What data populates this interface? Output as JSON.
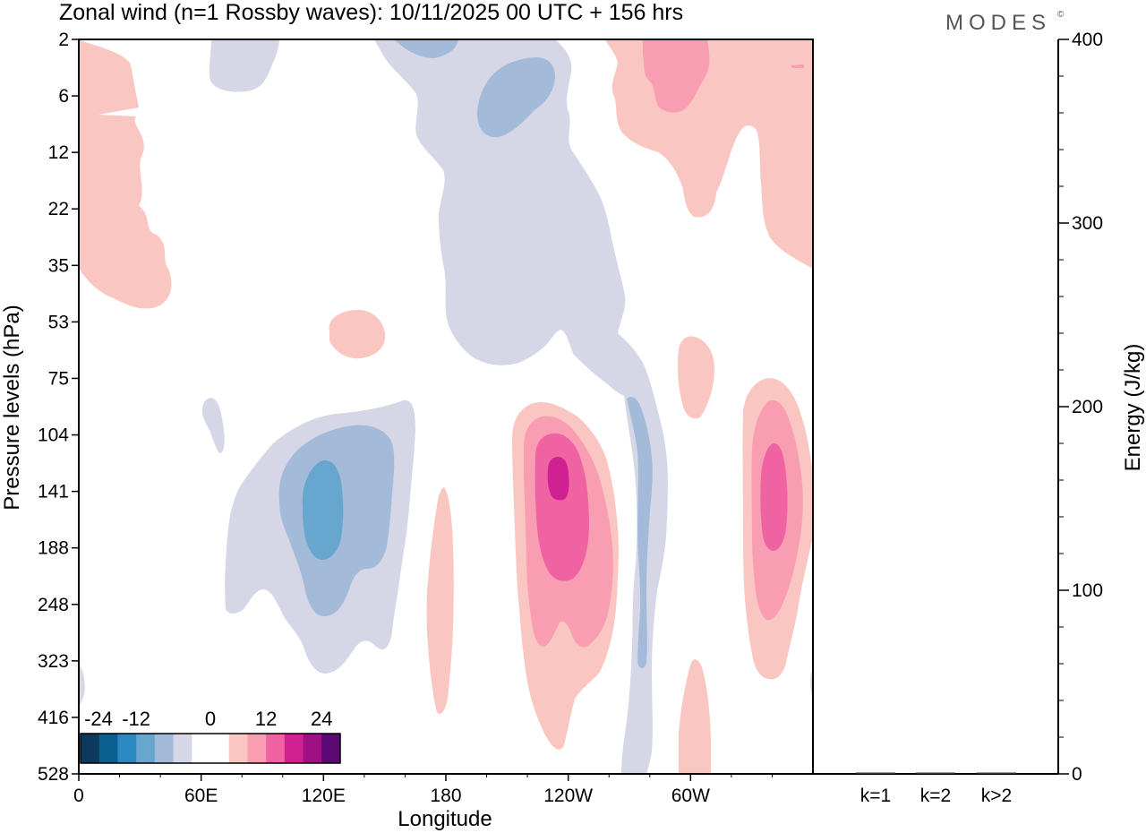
{
  "title": "Zonal wind (n=1 Rossby waves):  10/11/2025  00 UTC  + 156 hrs",
  "brand": "MODES",
  "brand_mark": "©",
  "chart_data": [
    {
      "type": "heatmap",
      "title": "Zonal wind (n=1 Rossby waves):  10/11/2025  00 UTC  + 156 hrs",
      "xlabel": "Longitude",
      "ylabel": "Pressure levels (hPa)",
      "x_ticks": [
        "0",
        "60E",
        "120E",
        "180",
        "120W",
        "60W"
      ],
      "y_ticks": [
        "2",
        "6",
        "12",
        "22",
        "35",
        "53",
        "75",
        "104",
        "141",
        "188",
        "248",
        "323",
        "416",
        "528"
      ],
      "colorbar": {
        "labels": [
          "-24",
          "-12",
          "0",
          "12",
          "24"
        ],
        "colors": [
          "#0d3a5c",
          "#0b5f8f",
          "#2b88c0",
          "#67a7cf",
          "#a3bbd9",
          "#d5d7e7",
          "#ffffff",
          "#ffffff",
          "#f9c6c1",
          "#f99db3",
          "#f063a3",
          "#cf2191",
          "#a11083",
          "#5a0873"
        ]
      },
      "contour_colors": {
        "neg1": "#d5d7e7",
        "neg2": "#a3bbd9",
        "neg3": "#67a7cf",
        "pos1": "#f9c6c1",
        "pos2": "#f99db3",
        "pos3": "#f063a3",
        "pos4": "#cf2191"
      }
    },
    {
      "type": "bar",
      "categories": [
        "k=1",
        "k=2",
        "k>2"
      ],
      "values": [
        0.3,
        0.3,
        0.5
      ],
      "ylabel": "Energy (J/kg)",
      "ylim": [
        0,
        400
      ],
      "y_ticks": [
        "0",
        "100",
        "200",
        "300",
        "400"
      ]
    }
  ]
}
